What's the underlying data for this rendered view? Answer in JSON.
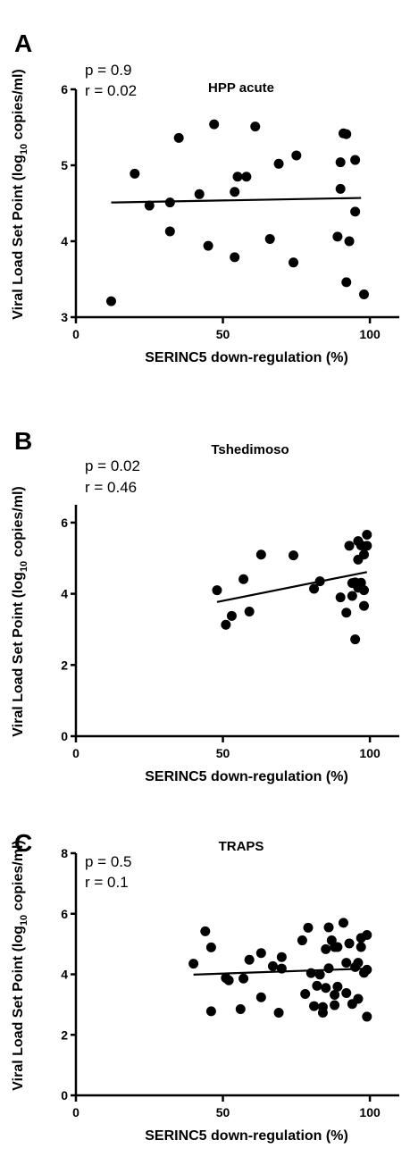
{
  "chart_data": [
    {
      "type": "scatter",
      "panel": "A",
      "title": "HPP acute",
      "stats": [
        "p = 0.9",
        "r = 0.02"
      ],
      "xlabel": "SERINC5 down-regulation (%)",
      "ylabel_pre": "Viral Load Set Point (log",
      "ylabel_sub": "10",
      "ylabel_post": " copies/ml)",
      "xlim": [
        0,
        110
      ],
      "ylim": [
        3,
        6
      ],
      "xticks": [
        0,
        50,
        100
      ],
      "yticks": [
        3,
        4,
        5,
        6
      ],
      "fit": {
        "x": [
          12,
          97
        ],
        "y": [
          4.51,
          4.57
        ]
      },
      "points": [
        {
          "x": 12,
          "y": 3.21
        },
        {
          "x": 20,
          "y": 4.89
        },
        {
          "x": 25,
          "y": 4.47
        },
        {
          "x": 32,
          "y": 4.51
        },
        {
          "x": 32,
          "y": 4.13
        },
        {
          "x": 35,
          "y": 5.36
        },
        {
          "x": 42,
          "y": 4.62
        },
        {
          "x": 45,
          "y": 3.94
        },
        {
          "x": 47,
          "y": 5.54
        },
        {
          "x": 54,
          "y": 3.79
        },
        {
          "x": 54,
          "y": 4.65
        },
        {
          "x": 55,
          "y": 4.85
        },
        {
          "x": 58,
          "y": 4.85
        },
        {
          "x": 61,
          "y": 5.51
        },
        {
          "x": 66,
          "y": 4.03
        },
        {
          "x": 69,
          "y": 5.02
        },
        {
          "x": 74,
          "y": 3.72
        },
        {
          "x": 75,
          "y": 5.13
        },
        {
          "x": 89,
          "y": 4.06
        },
        {
          "x": 90,
          "y": 5.04
        },
        {
          "x": 90,
          "y": 4.69
        },
        {
          "x": 91,
          "y": 5.42
        },
        {
          "x": 92,
          "y": 5.41
        },
        {
          "x": 92,
          "y": 3.46
        },
        {
          "x": 93,
          "y": 4.0
        },
        {
          "x": 95,
          "y": 5.07
        },
        {
          "x": 95,
          "y": 4.39
        },
        {
          "x": 98,
          "y": 3.3
        }
      ]
    },
    {
      "type": "scatter",
      "panel": "B",
      "title": "Tshedimoso",
      "stats": [
        "p = 0.02",
        "r = 0.46"
      ],
      "xlabel": "SERINC5 down-regulation (%)",
      "ylabel_pre": "Viral Load Set Point (log",
      "ylabel_sub": "10",
      "ylabel_post": " copies/ml)",
      "xlim": [
        0,
        110
      ],
      "ylim": [
        0,
        6.5
      ],
      "xticks": [
        0,
        50,
        100
      ],
      "yticks": [
        0,
        2,
        4,
        6
      ],
      "fit": {
        "x": [
          48,
          99
        ],
        "y": [
          3.77,
          4.61
        ]
      },
      "points": [
        {
          "x": 48,
          "y": 4.1
        },
        {
          "x": 51,
          "y": 3.13
        },
        {
          "x": 53,
          "y": 3.38
        },
        {
          "x": 57,
          "y": 4.41
        },
        {
          "x": 59,
          "y": 3.5
        },
        {
          "x": 63,
          "y": 5.1
        },
        {
          "x": 74,
          "y": 5.08
        },
        {
          "x": 81,
          "y": 4.14
        },
        {
          "x": 83,
          "y": 4.35
        },
        {
          "x": 90,
          "y": 3.9
        },
        {
          "x": 92,
          "y": 3.47
        },
        {
          "x": 93,
          "y": 5.35
        },
        {
          "x": 94,
          "y": 4.3
        },
        {
          "x": 94,
          "y": 3.94
        },
        {
          "x": 95,
          "y": 2.72
        },
        {
          "x": 95,
          "y": 4.32
        },
        {
          "x": 96,
          "y": 4.96
        },
        {
          "x": 96,
          "y": 5.48
        },
        {
          "x": 96,
          "y": 4.17
        },
        {
          "x": 97,
          "y": 4.31
        },
        {
          "x": 97,
          "y": 5.36
        },
        {
          "x": 98,
          "y": 3.66
        },
        {
          "x": 98,
          "y": 4.1
        },
        {
          "x": 98,
          "y": 5.1
        },
        {
          "x": 99,
          "y": 5.66
        },
        {
          "x": 99,
          "y": 5.35
        }
      ]
    },
    {
      "type": "scatter",
      "panel": "C",
      "title": "TRAPS",
      "stats": [
        "p = 0.5",
        "r = 0.1"
      ],
      "xlabel": "SERINC5 down-regulation (%)",
      "ylabel_pre": "Viral Load Set Point (log",
      "ylabel_sub": "10",
      "ylabel_post": " copies/ml)",
      "xlim": [
        0,
        110
      ],
      "ylim": [
        0,
        8
      ],
      "xticks": [
        0,
        50,
        100
      ],
      "yticks": [
        0,
        2,
        4,
        6,
        8
      ],
      "fit": {
        "x": [
          40,
          99
        ],
        "y": [
          3.99,
          4.19
        ]
      },
      "points": [
        {
          "x": 40,
          "y": 4.35
        },
        {
          "x": 44,
          "y": 5.42
        },
        {
          "x": 46,
          "y": 4.89
        },
        {
          "x": 46,
          "y": 2.78
        },
        {
          "x": 51,
          "y": 3.88
        },
        {
          "x": 52,
          "y": 3.8
        },
        {
          "x": 56,
          "y": 2.85
        },
        {
          "x": 57,
          "y": 3.86
        },
        {
          "x": 59,
          "y": 4.48
        },
        {
          "x": 63,
          "y": 4.7
        },
        {
          "x": 63,
          "y": 3.24
        },
        {
          "x": 67,
          "y": 4.27
        },
        {
          "x": 69,
          "y": 2.73
        },
        {
          "x": 70,
          "y": 4.57
        },
        {
          "x": 70,
          "y": 4.19
        },
        {
          "x": 77,
          "y": 5.12
        },
        {
          "x": 78,
          "y": 3.35
        },
        {
          "x": 79,
          "y": 5.54
        },
        {
          "x": 80,
          "y": 4.04
        },
        {
          "x": 81,
          "y": 2.95
        },
        {
          "x": 82,
          "y": 3.62
        },
        {
          "x": 83,
          "y": 3.99
        },
        {
          "x": 84,
          "y": 2.92
        },
        {
          "x": 84,
          "y": 2.73
        },
        {
          "x": 85,
          "y": 4.83
        },
        {
          "x": 85,
          "y": 3.55
        },
        {
          "x": 86,
          "y": 5.55
        },
        {
          "x": 86,
          "y": 4.2
        },
        {
          "x": 87,
          "y": 5.12
        },
        {
          "x": 88,
          "y": 4.9
        },
        {
          "x": 88,
          "y": 3.32
        },
        {
          "x": 88,
          "y": 2.98
        },
        {
          "x": 89,
          "y": 4.9
        },
        {
          "x": 89,
          "y": 3.59
        },
        {
          "x": 91,
          "y": 5.7
        },
        {
          "x": 92,
          "y": 4.38
        },
        {
          "x": 92,
          "y": 3.38
        },
        {
          "x": 93,
          "y": 5.02
        },
        {
          "x": 94,
          "y": 3.02
        },
        {
          "x": 95,
          "y": 4.24
        },
        {
          "x": 96,
          "y": 4.38
        },
        {
          "x": 96,
          "y": 3.19
        },
        {
          "x": 97,
          "y": 5.2
        },
        {
          "x": 97,
          "y": 4.9
        },
        {
          "x": 98,
          "y": 4.05
        },
        {
          "x": 99,
          "y": 5.3
        },
        {
          "x": 99,
          "y": 2.6
        },
        {
          "x": 99,
          "y": 4.15
        }
      ]
    }
  ]
}
